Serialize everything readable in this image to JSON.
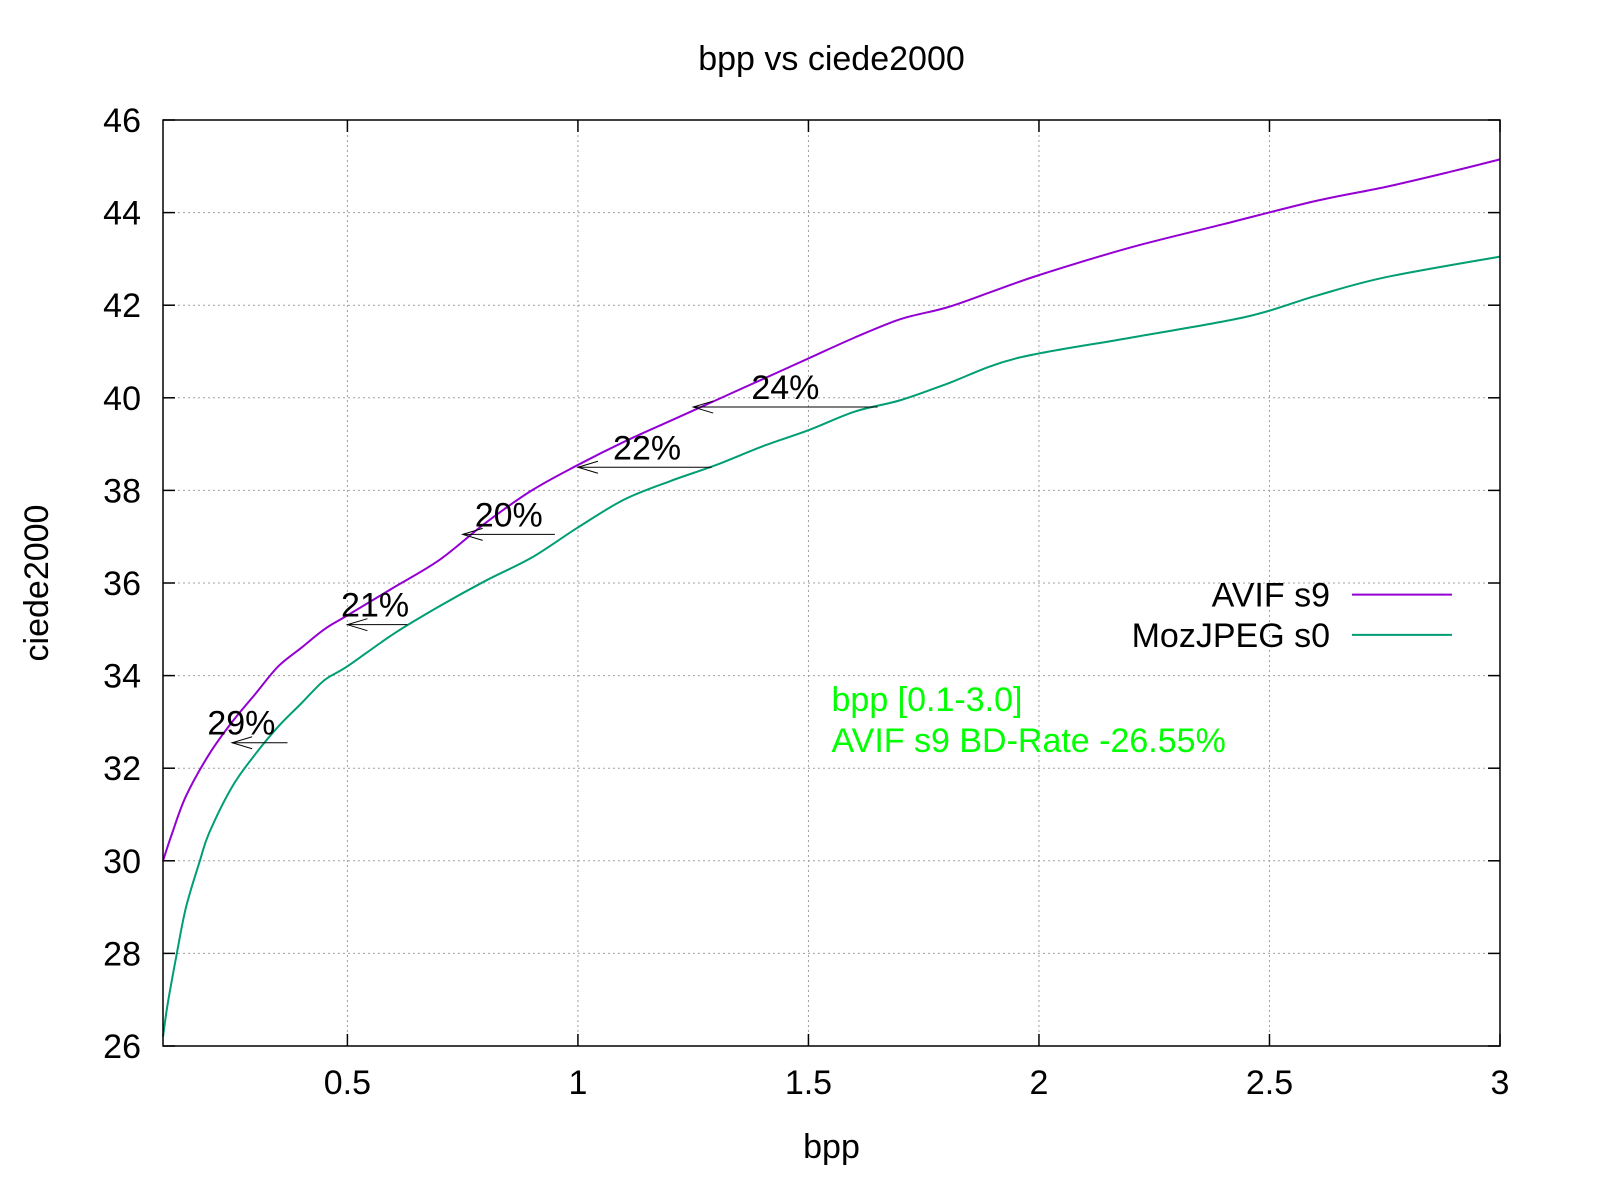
{
  "chart_data": {
    "type": "line",
    "title": "bpp vs ciede2000",
    "xlabel": "bpp",
    "ylabel": "ciede2000",
    "xlim": [
      0.1,
      3
    ],
    "ylim": [
      26,
      46
    ],
    "xticks": [
      0.5,
      1,
      1.5,
      2,
      2.5,
      3
    ],
    "xtick_labels": [
      "0.5",
      "1",
      "1.5",
      "2",
      "2.5",
      "3"
    ],
    "yticks": [
      26,
      28,
      30,
      32,
      34,
      36,
      38,
      40,
      42,
      44,
      46
    ],
    "ytick_labels": [
      "26",
      "28",
      "30",
      "32",
      "34",
      "36",
      "38",
      "40",
      "42",
      "44",
      "46"
    ],
    "grid": true,
    "legend_position": "right",
    "series": [
      {
        "name": "AVIF s9",
        "color": "#9400d3",
        "points": [
          [
            0.1,
            30.0
          ],
          [
            0.12,
            30.6
          ],
          [
            0.15,
            31.4
          ],
          [
            0.2,
            32.3
          ],
          [
            0.25,
            33.0
          ],
          [
            0.3,
            33.6
          ],
          [
            0.35,
            34.2
          ],
          [
            0.4,
            34.6
          ],
          [
            0.45,
            35.0
          ],
          [
            0.5,
            35.3
          ],
          [
            0.6,
            35.9
          ],
          [
            0.7,
            36.5
          ],
          [
            0.8,
            37.3
          ],
          [
            0.9,
            38.0
          ],
          [
            1.0,
            38.55
          ],
          [
            1.1,
            39.05
          ],
          [
            1.2,
            39.5
          ],
          [
            1.3,
            39.95
          ],
          [
            1.4,
            40.4
          ],
          [
            1.5,
            40.85
          ],
          [
            1.6,
            41.3
          ],
          [
            1.7,
            41.7
          ],
          [
            1.8,
            41.95
          ],
          [
            1.9,
            42.3
          ],
          [
            2.0,
            42.65
          ],
          [
            2.2,
            43.25
          ],
          [
            2.4,
            43.75
          ],
          [
            2.6,
            44.25
          ],
          [
            2.75,
            44.55
          ],
          [
            2.9,
            44.9
          ],
          [
            3.0,
            45.15
          ]
        ]
      },
      {
        "name": "MozJPEG s0",
        "color": "#009e73",
        "points": [
          [
            0.1,
            26.2
          ],
          [
            0.11,
            26.9
          ],
          [
            0.13,
            28.0
          ],
          [
            0.15,
            29.0
          ],
          [
            0.18,
            30.0
          ],
          [
            0.2,
            30.6
          ],
          [
            0.25,
            31.6
          ],
          [
            0.3,
            32.3
          ],
          [
            0.35,
            32.9
          ],
          [
            0.4,
            33.4
          ],
          [
            0.45,
            33.9
          ],
          [
            0.5,
            34.2
          ],
          [
            0.6,
            34.9
          ],
          [
            0.7,
            35.5
          ],
          [
            0.8,
            36.05
          ],
          [
            0.9,
            36.55
          ],
          [
            1.0,
            37.2
          ],
          [
            1.1,
            37.8
          ],
          [
            1.2,
            38.2
          ],
          [
            1.3,
            38.55
          ],
          [
            1.4,
            38.95
          ],
          [
            1.5,
            39.3
          ],
          [
            1.6,
            39.7
          ],
          [
            1.7,
            39.95
          ],
          [
            1.8,
            40.3
          ],
          [
            1.95,
            40.85
          ],
          [
            2.2,
            41.3
          ],
          [
            2.45,
            41.75
          ],
          [
            2.6,
            42.2
          ],
          [
            2.75,
            42.6
          ],
          [
            3.0,
            43.05
          ]
        ]
      }
    ],
    "annotations": [
      {
        "text": "29%",
        "x": 0.27,
        "y": 32.55,
        "from_x": 0.37,
        "to_x": 0.25
      },
      {
        "text": "21%",
        "x": 0.56,
        "y": 35.1,
        "from_x": 0.63,
        "to_x": 0.5
      },
      {
        "text": "20%",
        "x": 0.85,
        "y": 37.05,
        "from_x": 0.95,
        "to_x": 0.75
      },
      {
        "text": "22%",
        "x": 1.15,
        "y": 38.5,
        "from_x": 1.29,
        "to_x": 1.0
      },
      {
        "text": "24%",
        "x": 1.45,
        "y": 39.8,
        "from_x": 1.65,
        "to_x": 1.25
      }
    ],
    "info_lines": [
      "bpp [0.1-3.0]",
      "AVIF s9 BD-Rate -26.55%"
    ],
    "info_color": "#00ff00",
    "info_anchor": [
      1.55,
      33.5
    ]
  }
}
